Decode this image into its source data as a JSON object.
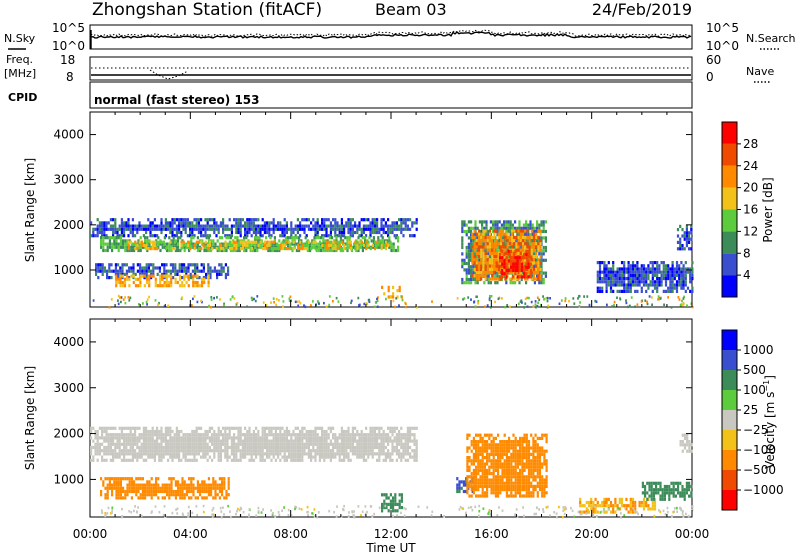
{
  "header": {
    "title": "Zhongshan Station (fitACF)",
    "beam": "Beam 03",
    "date": "24/Feb/2019"
  },
  "time_axis": {
    "label": "Time UT",
    "ticks": [
      "00:00",
      "04:00",
      "08:00",
      "12:00",
      "16:00",
      "20:00",
      "00:00"
    ],
    "hours": [
      0,
      4,
      8,
      12,
      16,
      20,
      24
    ]
  },
  "nsky_panel": {
    "left_label": "N.Sky",
    "right_label": "N.Search",
    "left_ticks": [
      "10^5",
      "10^0"
    ],
    "right_ticks": [
      "10^5",
      "10^0"
    ]
  },
  "freq_panel": {
    "left_label_1": "Freq.",
    "left_label_2": "[MHz]",
    "right_label": "Nave",
    "left_ticks": [
      "18",
      "8"
    ],
    "right_ticks": [
      "60",
      "0"
    ]
  },
  "cpid": {
    "label": "CPID",
    "text": "normal (fast stereo) 153"
  },
  "colors": {
    "power": [
      "#0000ff",
      "#3a4fd0",
      "#3c8c5a",
      "#5ccc3c",
      "#f2c21b",
      "#ff8a00",
      "#f04a00",
      "#ff0000"
    ],
    "velocity": [
      "#ff0000",
      "#f04a00",
      "#ff8a00",
      "#f2c21b",
      "#c8c8c0",
      "#5ccc3c",
      "#3c8c5a",
      "#3a4fd0",
      "#0000ff"
    ]
  },
  "chart_data": [
    {
      "type": "heatmap",
      "name": "power",
      "ylabel": "Slant Range [km]",
      "xlabel": "",
      "xlim": [
        0,
        24
      ],
      "ylim": [
        180,
        4500
      ],
      "yticks": [
        1000,
        2000,
        3000,
        4000
      ],
      "ytick_labels": [
        "1000",
        "2000",
        "3000",
        "4000"
      ],
      "colorbar": {
        "label": "Power [dB]",
        "range": [
          0,
          32
        ],
        "ticks": [
          4,
          8,
          12,
          16,
          20,
          24,
          28
        ],
        "tick_labels": [
          "4",
          "8",
          "12",
          "16",
          "20",
          "24",
          "28"
        ]
      },
      "regions": [
        {
          "t0": 0.0,
          "t1": 13.0,
          "r0": 1750,
          "r1": 2150,
          "v": 6
        },
        {
          "t0": 0.4,
          "t1": 12.3,
          "r0": 1400,
          "r1": 1750,
          "v": 12
        },
        {
          "t0": 1.5,
          "t1": 12.0,
          "r0": 1450,
          "r1": 1650,
          "v": 18
        },
        {
          "t0": 0.2,
          "t1": 5.5,
          "r0": 850,
          "r1": 1150,
          "v": 6
        },
        {
          "t0": 1.0,
          "t1": 4.7,
          "r0": 650,
          "r1": 900,
          "v": 20
        },
        {
          "t0": 11.6,
          "t1": 12.4,
          "r0": 400,
          "r1": 650,
          "v": 20
        },
        {
          "t0": 14.8,
          "t1": 18.2,
          "r0": 750,
          "r1": 2100,
          "v": 10
        },
        {
          "t0": 15.2,
          "t1": 18.0,
          "r0": 800,
          "r1": 1900,
          "v": 22
        },
        {
          "t0": 16.3,
          "t1": 17.6,
          "r0": 850,
          "r1": 1450,
          "v": 28
        },
        {
          "t0": 20.2,
          "t1": 24.0,
          "r0": 500,
          "r1": 1200,
          "v": 6
        },
        {
          "t0": 23.4,
          "t1": 24.0,
          "r0": 1500,
          "r1": 2000,
          "v": 6
        }
      ]
    },
    {
      "type": "heatmap",
      "name": "velocity",
      "ylabel": "Slant Range [km]",
      "xlabel": "Time UT",
      "xlim": [
        0,
        24
      ],
      "ylim": [
        180,
        4500
      ],
      "yticks": [
        1000,
        2000,
        3000,
        4000
      ],
      "ytick_labels": [
        "1000",
        "2000",
        "3000",
        "4000"
      ],
      "colorbar": {
        "label": "Velocity [m s^-1]",
        "tick_labels": [
          "-1000",
          "-500",
          "-100",
          "-25",
          "25",
          "100",
          "500",
          "1000"
        ]
      },
      "regions": [
        {
          "t0": 0.0,
          "t1": 13.0,
          "r0": 1400,
          "r1": 2150,
          "v": 0
        },
        {
          "t0": 0.4,
          "t1": 5.5,
          "r0": 600,
          "r1": 1050,
          "v": -150
        },
        {
          "t0": 11.6,
          "t1": 12.4,
          "r0": 350,
          "r1": 700,
          "v": 200
        },
        {
          "t0": 14.6,
          "t1": 15.3,
          "r0": 750,
          "r1": 1050,
          "v": 600
        },
        {
          "t0": 15.0,
          "t1": 18.2,
          "r0": 650,
          "r1": 2000,
          "v": -250
        },
        {
          "t0": 19.5,
          "t1": 22.5,
          "r0": 300,
          "r1": 600,
          "v": -100
        },
        {
          "t0": 22.0,
          "t1": 24.0,
          "r0": 550,
          "r1": 950,
          "v": 150
        },
        {
          "t0": 23.5,
          "t1": 24.0,
          "r0": 1600,
          "r1": 2000,
          "v": 0
        }
      ]
    }
  ]
}
